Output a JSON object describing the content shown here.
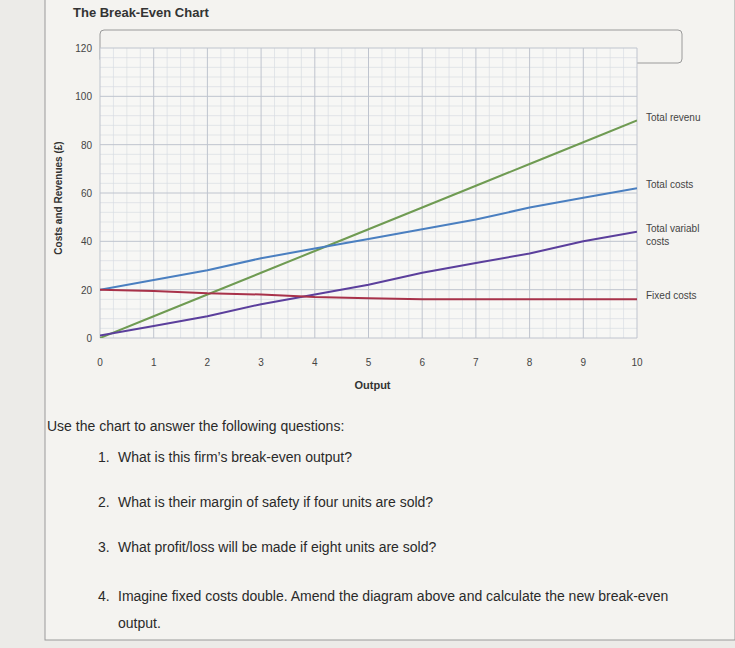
{
  "chart_data": {
    "type": "line",
    "title": "The Break-Even Chart",
    "x_label": "Output",
    "y_label": "Costs and Revenues (£)",
    "x": [
      0,
      1,
      2,
      3,
      4,
      5,
      6,
      7,
      8,
      9,
      10
    ],
    "series": [
      {
        "name": "Total revenu",
        "color": "#6f9b52",
        "values": [
          0,
          9,
          18,
          27,
          36,
          45,
          54,
          63,
          72,
          81,
          90
        ]
      },
      {
        "name": "Total costs",
        "color": "#4a7fc0",
        "values": [
          20,
          24,
          28,
          33,
          37,
          41,
          45,
          49,
          54,
          58,
          62
        ]
      },
      {
        "name": "Total variabl costs",
        "color": "#5b3f9c",
        "values": [
          1,
          5,
          9,
          14,
          18,
          22,
          27,
          31,
          35,
          40,
          44
        ]
      },
      {
        "name": "Fixed costs",
        "color": "#a8324a",
        "values": [
          20,
          19.5,
          18.5,
          18,
          17,
          16.5,
          16,
          16,
          16,
          16,
          16
        ]
      }
    ],
    "xlim": [
      0,
      10
    ],
    "ylim": [
      0,
      120
    ],
    "xticks": [
      0,
      1,
      2,
      3,
      4,
      5,
      6,
      7,
      8,
      9,
      10
    ],
    "yticks": [
      0,
      20,
      40,
      60,
      80,
      100,
      120
    ],
    "grid": true
  },
  "page": {
    "instruction": "Use the chart to answer the following questions:",
    "questions": [
      {
        "number": "1.",
        "text": "What is this firm’s break-even output?"
      },
      {
        "number": "2.",
        "text": "What is their margin of safety if four units are sold?"
      },
      {
        "number": "3.",
        "text": "What profit/loss will be made if eight units are sold?"
      },
      {
        "number": "4.",
        "text": "Imagine fixed costs double. Amend the diagram above and calculate the new break-even output."
      }
    ]
  }
}
